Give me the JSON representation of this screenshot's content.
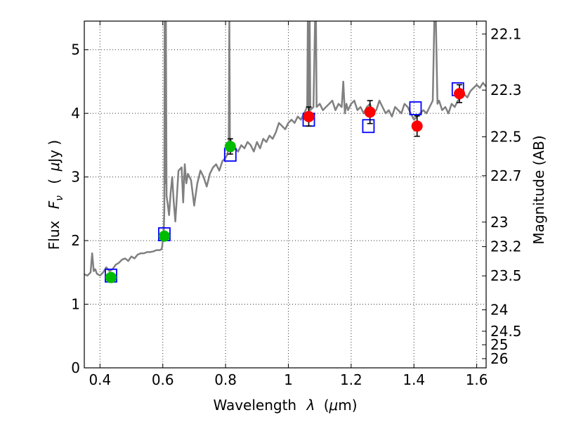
{
  "chart_data": {
    "type": "scatter",
    "xlabel_text": "Wavelength",
    "xlabel_symbol": "λ",
    "xlabel_unit_open": "(",
    "xlabel_unit_mu": "μ",
    "xlabel_unit_rest": "m)",
    "ylabel_text": "Flux",
    "ylabel_symbol": "F",
    "ylabel_subscript": "ν",
    "ylabel_unit_open": "(",
    "ylabel_unit_mu": "μ",
    "ylabel_unit_rest": "Jy )",
    "y2label": "Magnitude (AB)",
    "xlim": [
      0.35,
      1.63
    ],
    "ylim": [
      0,
      5.45
    ],
    "grid": true,
    "x_ticks": [
      0.4,
      0.6,
      0.8,
      1.0,
      1.2,
      1.4,
      1.6
    ],
    "x_tick_labels": [
      "0.4",
      "0.6",
      "0.8",
      "1",
      "1.2",
      "1.4",
      "1.6"
    ],
    "y_ticks": [
      0,
      1,
      2,
      3,
      4,
      5
    ],
    "y_tick_labels": [
      "0",
      "1",
      "2",
      "3",
      "4",
      "5"
    ],
    "y2_ticks": [
      {
        "label": "22.1",
        "mag": 22.1
      },
      {
        "label": "22.3",
        "mag": 22.3
      },
      {
        "label": "22.5",
        "mag": 22.5
      },
      {
        "label": "22.7",
        "mag": 22.7
      },
      {
        "label": "23",
        "mag": 23.0
      },
      {
        "label": "23.2",
        "mag": 23.2
      },
      {
        "label": "23.5",
        "mag": 23.5
      },
      {
        "label": "24",
        "mag": 24.0
      },
      {
        "label": "24.5",
        "mag": 24.5
      },
      {
        "label": "25",
        "mag": 25.0
      },
      {
        "label": "26",
        "mag": 26.0
      }
    ],
    "series": [
      {
        "name": "model spectrum",
        "kind": "line",
        "color": "#808080",
        "x": [
          0.35,
          0.36,
          0.37,
          0.375,
          0.38,
          0.385,
          0.39,
          0.4,
          0.41,
          0.42,
          0.43,
          0.44,
          0.45,
          0.46,
          0.47,
          0.48,
          0.49,
          0.5,
          0.51,
          0.52,
          0.53,
          0.54,
          0.55,
          0.56,
          0.57,
          0.58,
          0.59,
          0.595,
          0.598,
          0.6,
          0.603,
          0.605,
          0.606,
          0.608,
          0.61,
          0.612,
          0.615,
          0.62,
          0.625,
          0.63,
          0.635,
          0.64,
          0.645,
          0.65,
          0.66,
          0.665,
          0.67,
          0.675,
          0.68,
          0.69,
          0.7,
          0.71,
          0.72,
          0.73,
          0.74,
          0.75,
          0.76,
          0.77,
          0.78,
          0.79,
          0.8,
          0.805,
          0.81,
          0.812,
          0.814,
          0.816,
          0.82,
          0.83,
          0.84,
          0.85,
          0.86,
          0.87,
          0.88,
          0.89,
          0.9,
          0.91,
          0.92,
          0.93,
          0.94,
          0.95,
          0.96,
          0.97,
          0.98,
          0.99,
          1.0,
          1.01,
          1.02,
          1.03,
          1.04,
          1.05,
          1.06,
          1.062,
          1.065,
          1.068,
          1.07,
          1.08,
          1.085,
          1.088,
          1.09,
          1.1,
          1.11,
          1.12,
          1.13,
          1.14,
          1.15,
          1.16,
          1.17,
          1.175,
          1.18,
          1.185,
          1.19,
          1.2,
          1.21,
          1.22,
          1.23,
          1.24,
          1.25,
          1.26,
          1.27,
          1.28,
          1.29,
          1.3,
          1.31,
          1.32,
          1.33,
          1.34,
          1.35,
          1.36,
          1.37,
          1.38,
          1.39,
          1.4,
          1.41,
          1.42,
          1.43,
          1.44,
          1.45,
          1.46,
          1.465,
          1.47,
          1.475,
          1.48,
          1.49,
          1.5,
          1.51,
          1.52,
          1.53,
          1.54,
          1.55,
          1.56,
          1.57,
          1.58,
          1.59,
          1.6,
          1.61,
          1.62,
          1.63
        ],
        "y": [
          1.47,
          1.45,
          1.5,
          1.8,
          1.52,
          1.55,
          1.48,
          1.45,
          1.5,
          1.58,
          1.52,
          1.55,
          1.62,
          1.65,
          1.7,
          1.72,
          1.68,
          1.75,
          1.72,
          1.78,
          1.8,
          1.8,
          1.82,
          1.82,
          1.83,
          1.85,
          1.85,
          1.86,
          1.9,
          2.0,
          2.1,
          2.5,
          5.45,
          2.9,
          5.45,
          2.7,
          2.6,
          2.4,
          2.75,
          3.0,
          2.6,
          2.3,
          2.7,
          3.1,
          3.15,
          2.6,
          3.2,
          2.9,
          3.05,
          2.95,
          2.55,
          2.9,
          3.1,
          3.0,
          2.85,
          3.05,
          3.15,
          3.2,
          3.1,
          3.25,
          3.3,
          3.35,
          3.45,
          5.45,
          3.4,
          3.6,
          3.4,
          3.45,
          3.4,
          3.5,
          3.45,
          3.55,
          3.5,
          3.4,
          3.55,
          3.45,
          3.6,
          3.55,
          3.65,
          3.6,
          3.7,
          3.85,
          3.8,
          3.75,
          3.85,
          3.9,
          3.85,
          3.95,
          3.9,
          4.0,
          4.1,
          5.45,
          4.05,
          5.45,
          4.05,
          4.1,
          5.45,
          5.45,
          4.1,
          4.15,
          4.05,
          4.1,
          4.15,
          4.2,
          4.05,
          4.15,
          4.1,
          4.5,
          4.0,
          4.15,
          4.05,
          4.15,
          4.2,
          4.05,
          4.1,
          4.0,
          4.1,
          4.15,
          4.0,
          4.05,
          4.2,
          4.1,
          4.0,
          4.05,
          3.95,
          4.1,
          4.05,
          4.0,
          4.15,
          4.1,
          4.0,
          3.9,
          3.95,
          4.0,
          4.05,
          4.0,
          4.1,
          4.2,
          5.45,
          5.45,
          4.15,
          4.2,
          4.05,
          4.1,
          4.0,
          4.15,
          4.1,
          4.2,
          4.25,
          4.3,
          4.25,
          4.35,
          4.4,
          4.45,
          4.4,
          4.48,
          4.42
        ]
      },
      {
        "name": "synthetic photometry",
        "kind": "open-square",
        "color": "#0000ff",
        "x": [
          0.435,
          0.605,
          0.815,
          1.065,
          1.255,
          1.405,
          1.54
        ],
        "y": [
          1.45,
          2.1,
          3.35,
          3.9,
          3.8,
          4.08,
          4.38
        ]
      },
      {
        "name": "observed flux (green)",
        "kind": "filled-circle",
        "color": "#00bb00",
        "x": [
          0.435,
          0.605,
          0.815
        ],
        "y": [
          1.42,
          2.07,
          3.48
        ],
        "yerr": [
          0.06,
          0.05,
          0.12
        ]
      },
      {
        "name": "observed flux (red)",
        "kind": "filled-circle",
        "color": "#ff0000",
        "x": [
          1.065,
          1.26,
          1.41,
          1.545
        ],
        "y": [
          3.95,
          4.02,
          3.8,
          4.31
        ],
        "yerr": [
          0.15,
          0.18,
          0.16,
          0.14
        ]
      }
    ]
  }
}
